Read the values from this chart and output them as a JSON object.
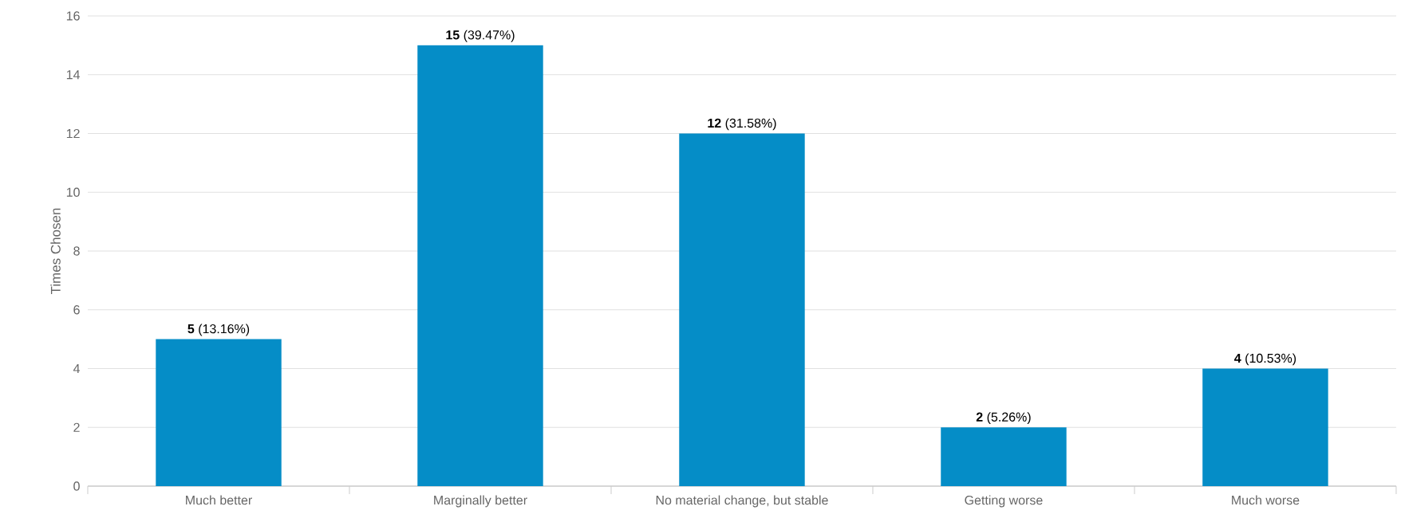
{
  "chart_data": {
    "type": "bar",
    "ylabel": "Times Chosen",
    "categories": [
      "Much better",
      "Marginally better",
      "No material change, but stable",
      "Getting worse",
      "Much worse"
    ],
    "values": [
      5,
      15,
      12,
      2,
      4
    ],
    "value_labels": [
      "**5** (13.16%)",
      "**15** (39.47%)",
      "**12** (31.58%)",
      "**2** (5.26%)",
      "**4** (10.53%)"
    ],
    "color": "#058dc7",
    "ylim": [
      0,
      16
    ],
    "yticks": [
      0,
      2,
      4,
      6,
      8,
      10,
      12,
      14,
      16
    ],
    "grid": "y"
  }
}
